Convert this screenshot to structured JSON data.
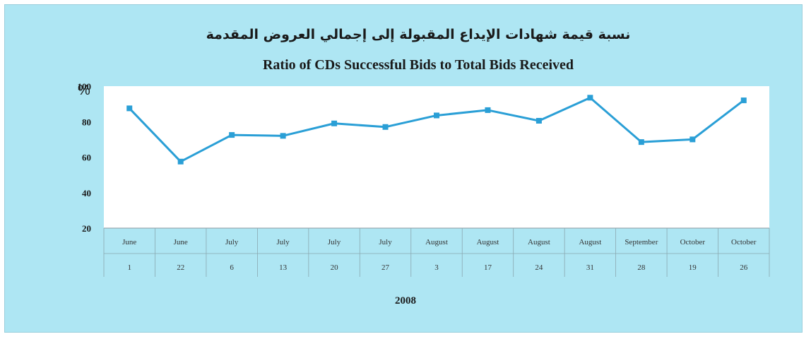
{
  "colors": {
    "background": "#aee6f3",
    "plot_area": "#ffffff",
    "series_line": "#2a9fd6"
  },
  "chart_data": {
    "type": "line",
    "title": "نسبة قيمة شهادات الإيداع المقبولة إلى إجمالي العروض المقدمة",
    "subtitle": "Ratio of CDs Successful Bids to Total Bids Received",
    "ylabel": "%",
    "xlabel": "2008",
    "ylim": [
      20,
      100
    ],
    "yticks": [
      "20",
      "40",
      "60",
      "80",
      "100"
    ],
    "grid": false,
    "legend": "none",
    "categories": [
      {
        "month": "June",
        "day": "1"
      },
      {
        "month": "June",
        "day": "22"
      },
      {
        "month": "July",
        "day": "6"
      },
      {
        "month": "July",
        "day": "13"
      },
      {
        "month": "July",
        "day": "20"
      },
      {
        "month": "July",
        "day": "27"
      },
      {
        "month": "August",
        "day": "3"
      },
      {
        "month": "August",
        "day": "17"
      },
      {
        "month": "August",
        "day": "24"
      },
      {
        "month": "August",
        "day": "31"
      },
      {
        "month": "September",
        "day": "28"
      },
      {
        "month": "October",
        "day": "19"
      },
      {
        "month": "October",
        "day": "26"
      }
    ],
    "series": [
      {
        "values": [
          87.5,
          57.5,
          72.5,
          72,
          79,
          77,
          83.5,
          86.5,
          80.5,
          93.5,
          68.5,
          70,
          92
        ]
      }
    ]
  }
}
